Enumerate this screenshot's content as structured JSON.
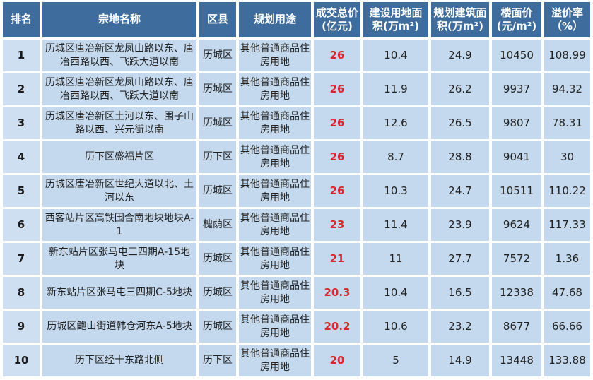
{
  "colors": {
    "header_bg": "#3e6d9d",
    "header_text": "#ffffff",
    "cell_bg": "#c4d9ed",
    "rank_cell_bg": "#cfdff2",
    "price_red": "#d52b30",
    "grid_line": "#ffffff"
  },
  "table": {
    "columns": [
      {
        "key": "rank",
        "label": "排名"
      },
      {
        "key": "name",
        "label": "宗地名称"
      },
      {
        "key": "district",
        "label": "区县"
      },
      {
        "key": "use",
        "label": "规划用途"
      },
      {
        "key": "price",
        "label": "成交总价(亿元)"
      },
      {
        "key": "land_area",
        "label": "建设用地面积(万m²)"
      },
      {
        "key": "build_area",
        "label": "规划建筑面积(万m²)"
      },
      {
        "key": "floor_price",
        "label": "楼面价(元/m²)"
      },
      {
        "key": "premium",
        "label": "溢价率（%）"
      }
    ],
    "rows": [
      {
        "rank": "1",
        "name": "历城区唐冶新区龙凤山路以东、唐冶西路以西、飞跃大道以南",
        "district": "历城区",
        "use": "其他普通商品住房用地",
        "price": "26",
        "land_area": "10.4",
        "build_area": "24.9",
        "floor_price": "10450",
        "premium": "108.99"
      },
      {
        "rank": "2",
        "name": "历城区唐冶新区龙凤山路以东、唐冶西路以西、飞跃大道以南",
        "district": "历城区",
        "use": "其他普通商品住房用地",
        "price": "26",
        "land_area": "11.9",
        "build_area": "26.2",
        "floor_price": "9937",
        "premium": "94.32"
      },
      {
        "rank": "3",
        "name": "历城区唐冶新区土河以东、围子山路以西、兴元街以南",
        "district": "历城区",
        "use": "其他普通商品住房用地",
        "price": "26",
        "land_area": "12.6",
        "build_area": "26.5",
        "floor_price": "9807",
        "premium": "78.31"
      },
      {
        "rank": "4",
        "name": "历下区盛福片区",
        "district": "历下区",
        "use": "其他普通商品住房用地",
        "price": "26",
        "land_area": "8.7",
        "build_area": "28.8",
        "floor_price": "9041",
        "premium": "30"
      },
      {
        "rank": "5",
        "name": "历城区唐冶新区世纪大道以北、土河以东",
        "district": "历城区",
        "use": "其他普通商品住房用地",
        "price": "26",
        "land_area": "10.3",
        "build_area": "24.7",
        "floor_price": "10511",
        "premium": "110.22"
      },
      {
        "rank": "6",
        "name": "西客站片区高铁围合南地块地块A-1",
        "district": "槐荫区",
        "use": "其他普通商品住房用地",
        "price": "23",
        "land_area": "11.4",
        "build_area": "23.9",
        "floor_price": "9624",
        "premium": "117.33"
      },
      {
        "rank": "7",
        "name": "新东站片区张马屯三四期A-15地块",
        "district": "历城区",
        "use": "其他普通商品住房用地",
        "price": "21",
        "land_area": "11",
        "build_area": "27.7",
        "floor_price": "7572",
        "premium": "1.36"
      },
      {
        "rank": "8",
        "name": "新东站片区张马屯三四期C-5地块",
        "district": "历城区",
        "use": "其他普通商品住房用地",
        "price": "20.3",
        "land_area": "10.4",
        "build_area": "16.5",
        "floor_price": "12338",
        "premium": "47.68"
      },
      {
        "rank": "9",
        "name": "历城区鲍山街道韩仓河东A-5地块",
        "district": "历城区",
        "use": "其他普通商品住房用地",
        "price": "20.2",
        "land_area": "10.6",
        "build_area": "23.2",
        "floor_price": "8677",
        "premium": "66.66"
      },
      {
        "rank": "10",
        "name": "历下区经十东路北侧",
        "district": "历下区",
        "use": "其他普通商品住房用地",
        "price": "20",
        "land_area": "5",
        "build_area": "14.9",
        "floor_price": "13448",
        "premium": "133.88"
      }
    ]
  }
}
